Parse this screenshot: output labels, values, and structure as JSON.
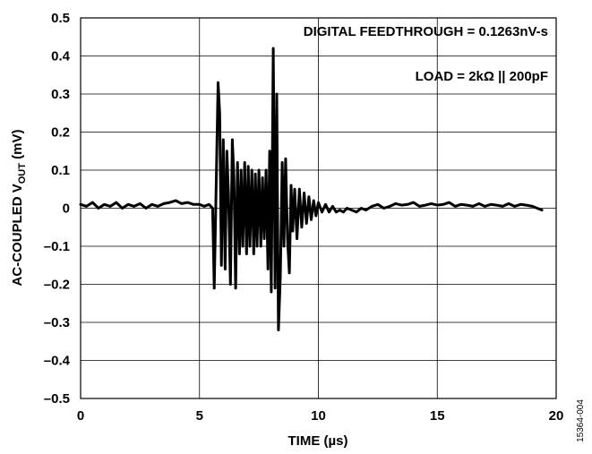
{
  "chart_data": {
    "type": "line",
    "xlabel": "TIME (µs)",
    "ylabel_main": "AC-COUPLED V",
    "ylabel_sub": "OUT",
    "ylabel_unit": " (mV)",
    "xlim": [
      0,
      20
    ],
    "ylim": [
      -0.5,
      0.5
    ],
    "x_ticks": [
      0,
      5,
      10,
      15,
      20
    ],
    "x_tick_labels": [
      "0",
      "5",
      "10",
      "15",
      "20"
    ],
    "y_ticks": [
      0.5,
      0.4,
      0.3,
      0.2,
      0.1,
      0,
      -0.1,
      -0.2,
      -0.3,
      -0.4,
      -0.5
    ],
    "y_tick_labels": [
      "0.5",
      "0.4",
      "0.3",
      "0.2",
      "0.1",
      "0",
      "–0.1",
      "–0.2",
      "–0.3",
      "–0.4",
      "–0.5"
    ],
    "grid": true,
    "annotations": [
      "DIGITAL FEEDTHROUGH = 0.1263nV-s",
      "LOAD = 2kΩ || 200pF"
    ],
    "figure_id": "15364-004",
    "line_color": "#000000",
    "series": [
      {
        "x": [
          0,
          0.25,
          0.5,
          0.75,
          1,
          1.25,
          1.5,
          1.75,
          2,
          2.25,
          2.5,
          2.75,
          3,
          3.25,
          3.5,
          3.75,
          4,
          4.25,
          4.5,
          4.75,
          5,
          5.2,
          5.4,
          5.55,
          5.62,
          5.7,
          5.78,
          5.85,
          5.92,
          6.0,
          6.08,
          6.15,
          6.22,
          6.3,
          6.38,
          6.45,
          6.52,
          6.6,
          6.68,
          6.75,
          6.82,
          6.9,
          6.98,
          7.05,
          7.12,
          7.2,
          7.28,
          7.35,
          7.42,
          7.5,
          7.58,
          7.65,
          7.72,
          7.8,
          7.88,
          7.95,
          8.02,
          8.1,
          8.18,
          8.25,
          8.32,
          8.4,
          8.48,
          8.55,
          8.62,
          8.7,
          8.78,
          8.85,
          8.92,
          9.0,
          9.1,
          9.2,
          9.3,
          9.4,
          9.5,
          9.6,
          9.7,
          9.8,
          9.9,
          10.0,
          10.15,
          10.3,
          10.45,
          10.6,
          10.75,
          10.9,
          11.05,
          11.2,
          11.4,
          11.6,
          11.8,
          12.0,
          12.25,
          12.5,
          12.75,
          13.0,
          13.25,
          13.5,
          13.75,
          14.0,
          14.25,
          14.5,
          14.75,
          15.0,
          15.25,
          15.5,
          15.75,
          16.0,
          16.25,
          16.5,
          16.75,
          17.0,
          17.25,
          17.5,
          17.75,
          18.0,
          18.25,
          18.5,
          18.75,
          19.0,
          19.2,
          19.4
        ],
        "y": [
          0.01,
          0.005,
          0.015,
          0.0,
          0.01,
          0.005,
          0.015,
          0.0,
          0.01,
          0.005,
          0.012,
          0.0,
          0.01,
          0.005,
          0.012,
          0.015,
          0.02,
          0.012,
          0.015,
          0.01,
          0.01,
          0.005,
          0.01,
          0.0,
          -0.21,
          0.05,
          0.33,
          0.25,
          -0.15,
          0.18,
          -0.16,
          0.15,
          0.04,
          -0.2,
          0.18,
          0.08,
          -0.21,
          0.12,
          -0.12,
          0.1,
          -0.1,
          0.12,
          -0.12,
          0.11,
          -0.1,
          0.1,
          -0.12,
          0.09,
          -0.1,
          0.1,
          -0.1,
          0.08,
          -0.08,
          0.1,
          -0.16,
          0.15,
          -0.22,
          0.42,
          -0.21,
          0.3,
          -0.32,
          -0.18,
          0.12,
          -0.1,
          0.13,
          -0.08,
          -0.17,
          0.06,
          -0.06,
          0.05,
          -0.08,
          0.05,
          -0.05,
          0.04,
          -0.04,
          0.03,
          -0.03,
          0.02,
          -0.02,
          0.015,
          -0.01,
          0.01,
          -0.01,
          0.005,
          -0.01,
          -0.005,
          -0.01,
          0.0,
          -0.005,
          -0.01,
          0.0,
          -0.005,
          0.005,
          0.01,
          0.0,
          0.005,
          0.012,
          0.008,
          0.01,
          0.015,
          0.005,
          0.008,
          0.012,
          0.008,
          0.01,
          0.015,
          0.005,
          0.01,
          0.008,
          0.005,
          0.012,
          0.005,
          0.01,
          0.008,
          0.005,
          0.012,
          0.005,
          0.01,
          0.008,
          0.005,
          0.0,
          -0.005
        ]
      }
    ]
  }
}
